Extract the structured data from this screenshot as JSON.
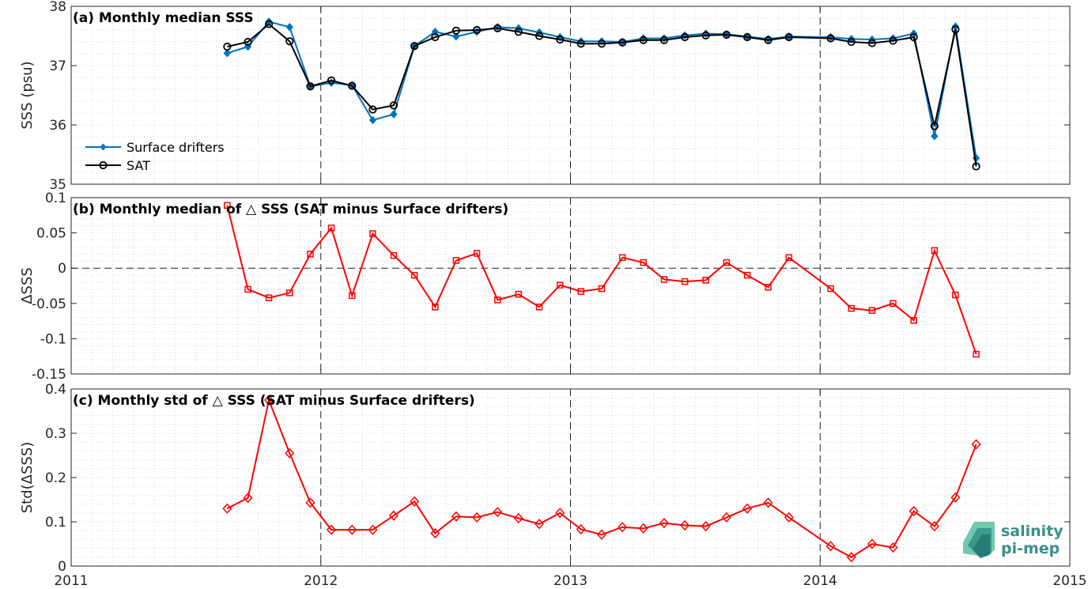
{
  "chart_data": [
    {
      "type": "line",
      "title": "(a) Monthly median SSS",
      "ylabel": "SSS (psu)",
      "xlim": [
        2011,
        2015
      ],
      "ylim": [
        35,
        38
      ],
      "yticks": [
        35,
        36,
        37,
        38
      ],
      "xticks": [
        2011,
        2012,
        2013,
        2014,
        2015
      ],
      "year_lines": [
        2012,
        2013,
        2014
      ],
      "grid": true,
      "legend_position": "bottom-left",
      "x": [
        2011.625,
        2011.708,
        2011.792,
        2011.875,
        2011.958,
        2012.042,
        2012.125,
        2012.208,
        2012.292,
        2012.375,
        2012.458,
        2012.542,
        2012.625,
        2012.708,
        2012.792,
        2012.875,
        2012.958,
        2013.042,
        2013.125,
        2013.208,
        2013.292,
        2013.375,
        2013.458,
        2013.542,
        2013.625,
        2013.708,
        2013.792,
        2013.875,
        2014.042,
        2014.125,
        2014.208,
        2014.292,
        2014.375,
        2014.458,
        2014.542,
        2014.625
      ],
      "series": [
        {
          "name": "Surface drifters",
          "color": "#0072bd",
          "marker": "diamond-filled",
          "values": [
            37.21,
            37.32,
            37.74,
            37.65,
            36.65,
            36.71,
            36.67,
            36.08,
            36.18,
            37.33,
            37.57,
            37.49,
            37.57,
            37.65,
            37.63,
            37.56,
            37.48,
            37.41,
            37.41,
            37.4,
            37.46,
            37.46,
            37.51,
            37.54,
            37.53,
            37.49,
            37.45,
            37.49,
            37.48,
            37.45,
            37.44,
            37.46,
            37.54,
            35.81,
            37.66,
            35.44
          ]
        },
        {
          "name": "SAT",
          "color": "#000000",
          "marker": "circle-open",
          "values": [
            37.32,
            37.4,
            37.7,
            37.41,
            36.65,
            36.75,
            36.66,
            36.26,
            36.33,
            37.33,
            37.48,
            37.59,
            37.6,
            37.63,
            37.57,
            37.5,
            37.44,
            37.37,
            37.37,
            37.39,
            37.43,
            37.43,
            37.48,
            37.51,
            37.52,
            37.48,
            37.43,
            37.48,
            37.46,
            37.4,
            37.38,
            37.42,
            37.48,
            35.98,
            37.61,
            35.3
          ]
        }
      ]
    },
    {
      "type": "line",
      "title": "(b) Monthly median of △ SSS (SAT minus Surface drifters)",
      "ylabel": "ΔSSS",
      "xlim": [
        2011,
        2015
      ],
      "ylim": [
        -0.15,
        0.1
      ],
      "yticks": [
        -0.15,
        -0.1,
        -0.05,
        0,
        0.05,
        0.1
      ],
      "ytick_labels": [
        "-0.15",
        "-0.1",
        "-0.05",
        "0",
        "0.05",
        "0.1"
      ],
      "xticks": [
        2011,
        2012,
        2013,
        2014,
        2015
      ],
      "year_lines": [
        2012,
        2013,
        2014
      ],
      "zero_line": true,
      "grid": true,
      "x": [
        2011.625,
        2011.708,
        2011.792,
        2011.875,
        2011.958,
        2012.042,
        2012.125,
        2012.208,
        2012.292,
        2012.375,
        2012.458,
        2012.542,
        2012.625,
        2012.708,
        2012.792,
        2012.875,
        2012.958,
        2013.042,
        2013.125,
        2013.208,
        2013.292,
        2013.375,
        2013.458,
        2013.542,
        2013.625,
        2013.708,
        2013.792,
        2013.875,
        2014.042,
        2014.125,
        2014.208,
        2014.292,
        2014.375,
        2014.458,
        2014.542,
        2014.625
      ],
      "series": [
        {
          "color": "#ff0000",
          "marker": "square-open",
          "values": [
            0.089,
            -0.03,
            -0.042,
            -0.035,
            0.02,
            0.057,
            -0.039,
            0.049,
            0.018,
            -0.01,
            -0.055,
            0.011,
            0.021,
            -0.045,
            -0.037,
            -0.055,
            -0.024,
            -0.033,
            -0.029,
            0.015,
            0.008,
            -0.016,
            -0.019,
            -0.017,
            0.008,
            -0.01,
            -0.027,
            0.015,
            -0.029,
            -0.057,
            -0.06,
            -0.05,
            -0.074,
            0.025,
            -0.038,
            -0.122
          ]
        }
      ]
    },
    {
      "type": "line",
      "title": "(c) Monthly std of △ SSS (SAT minus Surface drifters)",
      "ylabel": "Std(ΔSSS)",
      "xlim": [
        2011,
        2015
      ],
      "ylim": [
        0,
        0.4
      ],
      "yticks": [
        0,
        0.1,
        0.2,
        0.3,
        0.4
      ],
      "ytick_labels": [
        "0",
        "0.1",
        "0.2",
        "0.3",
        "0.4"
      ],
      "xticks": [
        2011,
        2012,
        2013,
        2014,
        2015
      ],
      "xtick_labels": [
        "2011",
        "2012",
        "2013",
        "2014",
        "2015"
      ],
      "year_lines": [
        2012,
        2013,
        2014
      ],
      "grid": true,
      "x": [
        2011.625,
        2011.708,
        2011.792,
        2011.875,
        2011.958,
        2012.042,
        2012.125,
        2012.208,
        2012.292,
        2012.375,
        2012.458,
        2012.542,
        2012.625,
        2012.708,
        2012.792,
        2012.875,
        2012.958,
        2013.042,
        2013.125,
        2013.208,
        2013.292,
        2013.375,
        2013.458,
        2013.542,
        2013.625,
        2013.708,
        2013.792,
        2013.875,
        2014.042,
        2014.125,
        2014.208,
        2014.292,
        2014.375,
        2014.458,
        2014.542,
        2014.625
      ],
      "series": [
        {
          "color": "#ff0000",
          "marker": "diamond-open",
          "values": [
            0.13,
            0.154,
            0.375,
            0.255,
            0.143,
            0.082,
            0.082,
            0.082,
            0.114,
            0.146,
            0.074,
            0.112,
            0.11,
            0.122,
            0.108,
            0.095,
            0.12,
            0.083,
            0.071,
            0.088,
            0.085,
            0.097,
            0.092,
            0.09,
            0.11,
            0.13,
            0.143,
            0.11,
            0.045,
            0.02,
            0.05,
            0.042,
            0.124,
            0.09,
            0.155,
            0.275
          ]
        }
      ]
    }
  ],
  "logo": {
    "line1": "salinity",
    "line2": "pi-mep",
    "color": "#3a9a8f"
  }
}
